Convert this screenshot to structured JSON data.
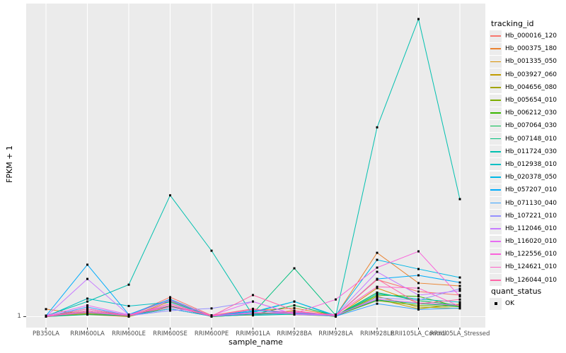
{
  "figure": {
    "y_axis_title": "FPKM + 1",
    "x_axis_title": "sample_name",
    "y_tick_label": "1",
    "tracking_legend_title": "tracking_id",
    "quant_legend_title": "quant_status",
    "quant_ok_label": "OK"
  },
  "colors": {
    "panel_bg": "#EBEBEB",
    "gridline": "#FFFFFF",
    "tick_mark": "#333333",
    "tick_text": "#4D4D4D",
    "marker": "#000000",
    "legend_key_bg": "#ECECEC"
  },
  "chart_data": {
    "type": "line",
    "title": "",
    "xlabel": "sample_name",
    "ylabel": "FPKM + 1",
    "y_scale": "log10",
    "y_ticks": [
      {
        "value": 1,
        "label": "1"
      }
    ],
    "ylim": [
      1,
      1430
    ],
    "grid": true,
    "legend_position": "right",
    "point_marker": "black square (quant_status = OK) on every data point",
    "x_categories": [
      "PB350LA",
      "RRIM600LA",
      "RRIM600LE",
      "RRIM600SE",
      "RRIM600PE",
      "RRIM901LA",
      "RRIM928BA",
      "RRIM928LA",
      "RRIM928LE",
      "RRII105LA_Control",
      "RRII105LA_Stressed"
    ],
    "series": [
      {
        "name": "Hb_000016_120",
        "color": "#F8766D",
        "values": [
          1.0,
          1.1,
          1.02,
          1.57,
          1.03,
          1.2,
          1.05,
          1.02,
          2.36,
          1.79,
          1.65
        ]
      },
      {
        "name": "Hb_000375_180",
        "color": "#EA8331",
        "values": [
          1.19,
          1.05,
          1.0,
          1.42,
          1.02,
          1.15,
          1.22,
          1.02,
          4.4,
          2.18,
          2.04
        ]
      },
      {
        "name": "Hb_001335_050",
        "color": "#D89000",
        "values": [
          1.0,
          1.08,
          1.01,
          1.3,
          1.0,
          1.05,
          1.15,
          1.0,
          1.94,
          1.38,
          1.29
        ]
      },
      {
        "name": "Hb_003927_060",
        "color": "#C09B00",
        "values": [
          1.02,
          1.12,
          1.0,
          1.25,
          1.03,
          1.08,
          1.05,
          1.01,
          1.5,
          1.2,
          1.34
        ]
      },
      {
        "name": "Hb_004656_080",
        "color": "#A3A500",
        "values": [
          1.0,
          1.06,
          1.02,
          1.2,
          1.01,
          1.04,
          1.1,
          1.0,
          1.6,
          1.25,
          1.21
        ]
      },
      {
        "name": "Hb_005654_010",
        "color": "#7CAE00",
        "values": [
          1.01,
          1.15,
          1.03,
          1.35,
          1.02,
          1.1,
          1.08,
          1.02,
          1.45,
          1.3,
          1.26
        ]
      },
      {
        "name": "Hb_006212_030",
        "color": "#39B600",
        "values": [
          1.0,
          1.2,
          1.02,
          1.3,
          1.01,
          1.06,
          1.12,
          1.01,
          1.65,
          1.6,
          1.25
        ]
      },
      {
        "name": "Hb_007064_030",
        "color": "#00BB4E",
        "values": [
          1.02,
          1.1,
          1.01,
          1.28,
          1.0,
          1.05,
          1.3,
          1.02,
          1.75,
          1.45,
          1.3
        ]
      },
      {
        "name": "Hb_007148_010",
        "color": "#00BF7D",
        "values": [
          1.0,
          1.05,
          1.02,
          1.2,
          1.01,
          1.08,
          3.07,
          1.03,
          1.47,
          1.35,
          1.28
        ]
      },
      {
        "name": "Hb_011724_030",
        "color": "#00C0AF",
        "values": [
          1.02,
          1.42,
          2.1,
          16.7,
          4.62,
          1.03,
          1.06,
          1.01,
          81.0,
          1000,
          15.3
        ]
      },
      {
        "name": "Hb_012938_010",
        "color": "#00BFC4",
        "values": [
          1.0,
          1.52,
          1.28,
          1.4,
          1.02,
          1.1,
          1.42,
          1.01,
          1.7,
          1.5,
          1.4
        ]
      },
      {
        "name": "Hb_020378_050",
        "color": "#00B8E7",
        "values": [
          1.0,
          1.1,
          1.04,
          1.45,
          1.02,
          1.12,
          1.42,
          1.03,
          3.74,
          3.02,
          2.48
        ]
      },
      {
        "name": "Hb_057207_010",
        "color": "#00ACFC",
        "values": [
          1.02,
          3.34,
          1.05,
          1.5,
          1.01,
          1.15,
          1.1,
          1.02,
          2.4,
          2.61,
          2.21
        ]
      },
      {
        "name": "Hb_071130_040",
        "color": "#35A2FF",
        "values": [
          1.0,
          1.25,
          1.03,
          1.2,
          1.01,
          1.05,
          1.08,
          1.01,
          1.35,
          1.18,
          1.22
        ]
      },
      {
        "name": "Hb_107221_010",
        "color": "#9590FF",
        "values": [
          1.01,
          1.1,
          1.02,
          1.15,
          1.21,
          1.42,
          1.05,
          1.02,
          1.55,
          1.47,
          1.91
        ]
      },
      {
        "name": "Hb_112046_010",
        "color": "#C77CFF",
        "values": [
          1.0,
          2.4,
          1.04,
          1.3,
          1.02,
          1.08,
          1.12,
          1.03,
          2.83,
          1.65,
          1.82
        ]
      },
      {
        "name": "Hb_116020_010",
        "color": "#E76BF3",
        "values": [
          1.02,
          1.3,
          1.05,
          1.25,
          1.03,
          1.42,
          1.06,
          1.04,
          1.5,
          1.38,
          1.3
        ]
      },
      {
        "name": "Hb_122556_010",
        "color": "#FA62DB",
        "values": [
          1.0,
          1.15,
          1.02,
          1.35,
          1.01,
          1.1,
          1.08,
          1.49,
          3.12,
          4.55,
          1.6
        ]
      },
      {
        "name": "Hb_124621_010",
        "color": "#FF61C9",
        "values": [
          1.01,
          1.2,
          1.03,
          1.47,
          1.02,
          1.18,
          1.1,
          1.05,
          2.0,
          1.94,
          1.27
        ]
      },
      {
        "name": "Hb_126044_010",
        "color": "#FF66A8",
        "values": [
          1.0,
          1.12,
          1.02,
          1.3,
          1.01,
          1.65,
          1.15,
          1.02,
          2.4,
          1.35,
          1.49
        ]
      }
    ]
  }
}
